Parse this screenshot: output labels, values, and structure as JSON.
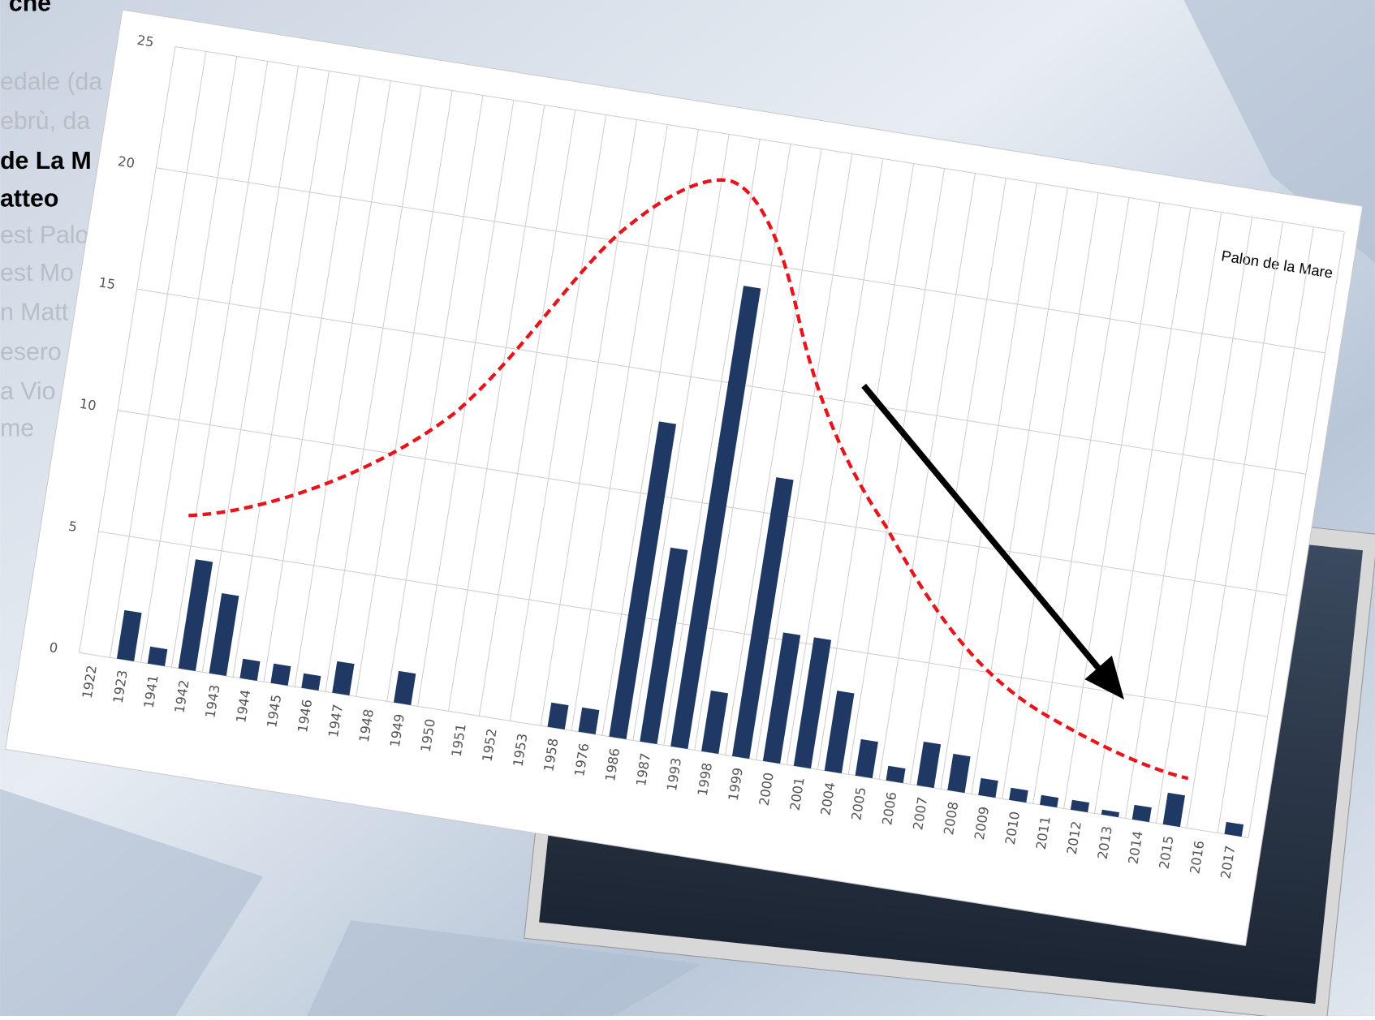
{
  "side_text": [
    "che",
    "edale (da",
    "ebrù, da",
    "de La M",
    "atteo",
    "est Palo",
    "est Mo",
    "n Matt",
    "esero",
    "a Vio",
    "me"
  ],
  "chart_data": {
    "type": "bar",
    "title": "Palon de la Mare",
    "categories": [
      "1922",
      "1923",
      "1941",
      "1942",
      "1943",
      "1944",
      "1945",
      "1946",
      "1947",
      "1948",
      "1949",
      "1950",
      "1951",
      "1952",
      "1953",
      "1958",
      "1976",
      "1986",
      "1987",
      "1993",
      "1998",
      "1999",
      "2000",
      "2001",
      "2004",
      "2005",
      "2006",
      "2007",
      "2008",
      "2009",
      "2010",
      "2011",
      "2012",
      "2013",
      "2014",
      "2015",
      "2016",
      "2017"
    ],
    "values": [
      0,
      2,
      0.7,
      4.5,
      3.3,
      0.8,
      0.8,
      0.6,
      1.3,
      0,
      1.3,
      0,
      0,
      0,
      0,
      1,
      1,
      13,
      8,
      19,
      2.5,
      11.5,
      5.3,
      5.3,
      3.3,
      1.5,
      0.6,
      1.8,
      1.5,
      0.7,
      0.5,
      0.4,
      0.4,
      0.2,
      0.6,
      1.3,
      0,
      0.5
    ],
    "color": "#1f3864",
    "ylim": [
      0,
      25
    ],
    "yticks": [
      0,
      5,
      10,
      15,
      20,
      25
    ],
    "grid": true
  }
}
